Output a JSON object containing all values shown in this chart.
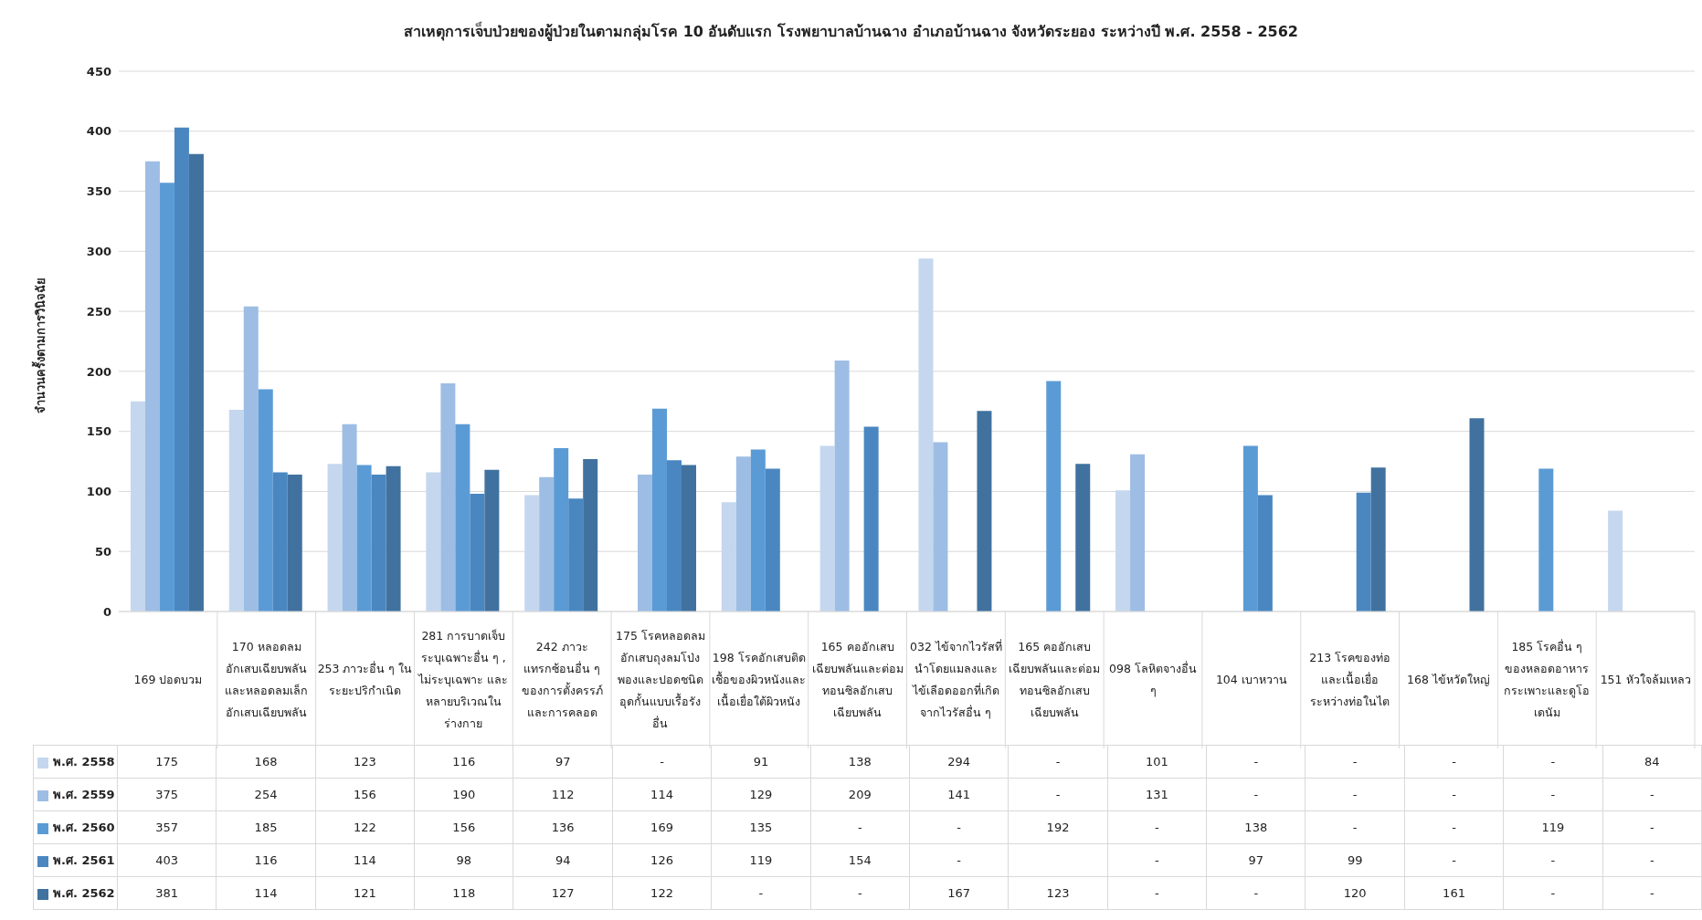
{
  "chart_data": {
    "type": "bar",
    "title": "สาเหตุการเจ็บป่วยของผู้ป่วยในตามกลุ่มโรค 10 อันดับแรก โรงพยาบาลบ้านฉาง อำเภอบ้านฉาง จังหวัดระยอง ระหว่างปี พ.ศ. 2558 - 2562",
    "ylabel": "จำนวนครั้งตามการวินิจฉัย",
    "categories": [
      "169 ปอดบวม",
      "170 หลอดลมอักเสบเฉียบพลันและหลอดลมเล็กอักเสบเฉียบพลัน",
      "253 ภาวะอื่น ๆ ในระยะปริกำเนิด",
      "281 การบาดเจ็บระบุเฉพาะอื่น ๆ , ไม่ระบุเฉพาะ และหลายบริเวณในร่างกาย",
      "242 ภาวะแทรกซ้อนอื่น ๆของการตั้งครรภ์ และการคลอด",
      "175 โรคหลอดลมอักเสบถุงลมโป่งพองและปอดชนิดอุดกั้นแบบเรื้อรังอื่น",
      "198 โรคอักเสบติดเชื้อของผิวหนังและเนื้อเยื่อใต้ผิวหนัง",
      "165 คออักเสบเฉียบพลันและต่อมทอนซิลอักเสบเฉียบพลัน",
      "032 ไข้จากไวรัสที่นำโดยแมลงและไข้เลือดออกที่เกิดจากไวรัสอื่น ๆ",
      "165 คออักเสบเฉียบพลันและต่อมทอนซิลอักเสบเฉียบพลัน",
      "098 โลหิตจางอื่น ๆ",
      "104 เบาหวาน",
      "213 โรคของท่อและเนื้อเยื่อระหว่างท่อในไต",
      "168 ไข้หวัดใหญ่",
      "185 โรคอื่น ๆ ของหลอดอาหาร กระเพาะและดูโอเดนัม",
      "151 หัวใจล้มเหลว"
    ],
    "series": [
      {
        "name": "พ.ศ. 2558",
        "color": "#c5d7ee",
        "values": [
          175,
          168,
          123,
          116,
          97,
          null,
          91,
          138,
          294,
          null,
          101,
          null,
          null,
          null,
          null,
          84
        ],
        "value_labels": [
          "175",
          "168",
          "123",
          "116",
          "97",
          "-",
          "91",
          "138",
          "294",
          "-",
          "101",
          "-",
          "-",
          "-",
          "-",
          "84"
        ]
      },
      {
        "name": "พ.ศ. 2559",
        "color": "#9dbde4",
        "values": [
          375,
          254,
          156,
          190,
          112,
          114,
          129,
          209,
          141,
          null,
          131,
          null,
          null,
          null,
          null,
          null
        ],
        "value_labels": [
          "375",
          "254",
          "156",
          "190",
          "112",
          "114",
          "129",
          "209",
          "141",
          "-",
          "131",
          "-",
          "-",
          "-",
          "-",
          "-"
        ]
      },
      {
        "name": "พ.ศ. 2560",
        "color": "#5b9bd5",
        "values": [
          357,
          185,
          122,
          156,
          136,
          169,
          135,
          null,
          null,
          192,
          null,
          138,
          null,
          null,
          119,
          null
        ],
        "value_labels": [
          "357",
          "185",
          "122",
          "156",
          "136",
          "169",
          "135",
          "-",
          "-",
          "192",
          "-",
          "138",
          "-",
          "-",
          "119",
          "-"
        ]
      },
      {
        "name": "พ.ศ. 2561",
        "color": "#4a87c1",
        "values": [
          403,
          116,
          114,
          98,
          94,
          126,
          119,
          154,
          null,
          null,
          null,
          97,
          99,
          null,
          null,
          null
        ],
        "value_labels": [
          "403",
          "116",
          "114",
          "98",
          "94",
          "126",
          "119",
          "154",
          "-",
          null,
          "-",
          "97",
          "99",
          "-",
          "-",
          "-"
        ]
      },
      {
        "name": "พ.ศ. 2562",
        "color": "#41729f",
        "values": [
          381,
          114,
          121,
          118,
          127,
          122,
          null,
          null,
          167,
          123,
          null,
          null,
          120,
          161,
          null,
          null
        ],
        "value_labels": [
          "381",
          "114",
          "121",
          "118",
          "127",
          "122",
          "-",
          "-",
          "167",
          "123",
          "-",
          "-",
          "120",
          "161",
          "-",
          "-"
        ]
      }
    ],
    "ylim": [
      0,
      450
    ],
    "yticks": [
      0,
      50,
      100,
      150,
      200,
      250,
      300,
      350,
      400,
      450
    ],
    "grid": "y",
    "legend": "bottom left"
  }
}
